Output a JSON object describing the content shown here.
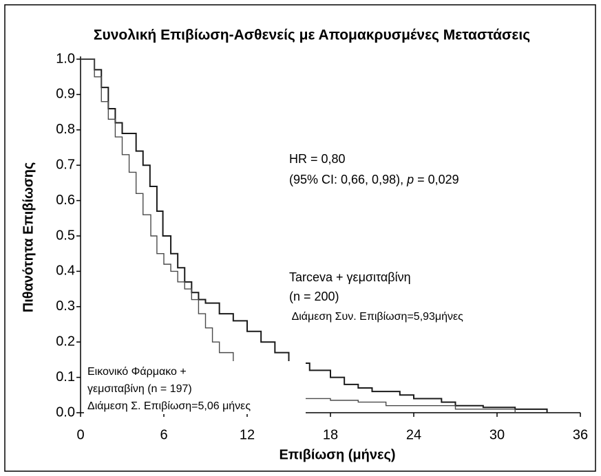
{
  "chart_data": {
    "type": "step",
    "title": "Συνολική Επιβίωση-Ασθενείς με Απομακρυσμένες Μεταστάσεις",
    "x_label": "Επιβίωση (μήνες)",
    "y_label": "Πιθανότητα Επιβίωσης",
    "xlim": [
      0,
      36
    ],
    "xticks": [
      0,
      6,
      12,
      18,
      24,
      30,
      36
    ],
    "ylim": [
      0,
      1
    ],
    "yticks": [
      {
        "value": 0,
        "label": "0.0"
      },
      {
        "value": 0.1,
        "label": "0.1"
      },
      {
        "value": 0.2,
        "label": "0.2"
      },
      {
        "value": 0.3,
        "label": "0.3"
      },
      {
        "value": 0.4,
        "label": "0.4"
      },
      {
        "value": 0.5,
        "label": "0.5"
      },
      {
        "value": 0.6,
        "label": "0.6"
      },
      {
        "value": 0.7,
        "label": "0.7"
      },
      {
        "value": 0.8,
        "label": "0.8"
      },
      {
        "value": 0.9,
        "label": "0.9"
      },
      {
        "value": 1,
        "label": "1.0"
      }
    ],
    "series": [
      {
        "color": "#1a1a1a",
        "x": [
          0,
          1,
          1.5,
          2,
          2.5,
          3,
          4,
          4.5,
          5,
          5.5,
          5.93,
          6.5,
          7,
          7.5,
          8,
          8.5,
          9,
          10,
          11,
          12,
          13,
          14,
          15,
          16.5,
          18,
          19,
          20,
          21,
          23,
          24,
          26,
          27,
          29,
          31.3,
          33.6
        ],
        "values": [
          1,
          0.97,
          0.92,
          0.86,
          0.82,
          0.79,
          0.74,
          0.7,
          0.64,
          0.57,
          0.5,
          0.45,
          0.41,
          0.37,
          0.34,
          0.32,
          0.31,
          0.28,
          0.26,
          0.23,
          0.2,
          0.17,
          0.14,
          0.12,
          0.1,
          0.08,
          0.07,
          0.06,
          0.05,
          0.04,
          0.03,
          0.02,
          0.015,
          0.01,
          0
        ]
      },
      {
        "color": "#4a4a4a",
        "x": [
          0,
          1,
          1.5,
          2,
          2.5,
          3,
          3.5,
          4,
          4.5,
          5.06,
          5.5,
          6,
          6.5,
          7,
          7.5,
          8,
          8.5,
          9,
          9.5,
          10,
          11,
          12,
          13,
          14,
          15,
          16,
          18,
          20,
          22,
          27,
          31.3
        ],
        "values": [
          1,
          0.95,
          0.88,
          0.83,
          0.78,
          0.73,
          0.68,
          0.62,
          0.56,
          0.5,
          0.45,
          0.42,
          0.4,
          0.37,
          0.35,
          0.32,
          0.28,
          0.24,
          0.2,
          0.17,
          0.14,
          0.12,
          0.09,
          0.07,
          0.05,
          0.04,
          0.035,
          0.03,
          0.02,
          0.01,
          0
        ]
      }
    ],
    "annotations": [
      [
        "HR = 0,80"
      ],
      [
        "(95% CI: 0,66, 0,98), ",
        "p",
        " = 0,029"
      ],
      [
        "Tarceva + γεμσιταβίνη"
      ],
      [
        "(n = 200)"
      ],
      [
        " Διάμεση Συν. Επιβίωση=5,93μήνες"
      ],
      [
        "Εικονικό Φάρμακο +"
      ],
      [
        "γεμσιταβίνη (n = 197)"
      ],
      [
        "Διάμεση Σ. Επιβίωση=5,06 μήνες"
      ]
    ]
  }
}
